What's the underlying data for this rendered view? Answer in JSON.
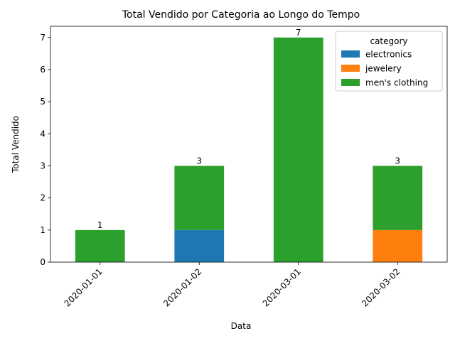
{
  "chart_data": {
    "type": "bar",
    "stacked": true,
    "title": "Total Vendido por Categoria ao Longo do Tempo",
    "xlabel": "Data",
    "ylabel": "Total Vendido",
    "categories": [
      "2020-01-01",
      "2020-01-02",
      "2020-03-01",
      "2020-03-02"
    ],
    "series": [
      {
        "name": "electronics",
        "values": [
          0,
          1,
          0,
          0
        ],
        "color": "#1f77b4"
      },
      {
        "name": "jewelery",
        "values": [
          0,
          0,
          0,
          1
        ],
        "color": "#ff7f0e"
      },
      {
        "name": "men's clothing",
        "values": [
          1,
          2,
          7,
          2
        ],
        "color": "#2ca02c"
      }
    ],
    "data_labels": [
      [
        "0",
        "0",
        "1"
      ],
      [
        "1",
        "0",
        "3"
      ],
      [
        "0",
        "0",
        "7"
      ],
      [
        "0",
        "1",
        "3"
      ]
    ],
    "ylim": [
      0,
      7.35
    ],
    "yticks": [
      0,
      1,
      2,
      3,
      4,
      5,
      6,
      7
    ],
    "grid": false,
    "legend": {
      "title": "category",
      "position": "top-right"
    }
  }
}
